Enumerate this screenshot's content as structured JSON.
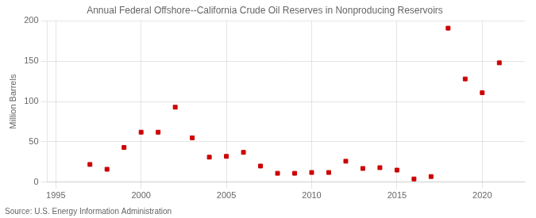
{
  "chart_data": {
    "type": "scatter",
    "title": "Annual Federal Offshore--California Crude Oil Reserves in Nonproducing Reservoirs",
    "ylabel": "Million Barrels",
    "annotations": [
      "Source: U.S. Energy Information Administration"
    ],
    "x": [
      1997,
      1998,
      1999,
      2000,
      2001,
      2002,
      2003,
      2004,
      2005,
      2006,
      2007,
      2008,
      2009,
      2010,
      2011,
      2012,
      2013,
      2014,
      2015,
      2016,
      2017,
      2018,
      2019,
      2020,
      2021
    ],
    "values": [
      22,
      16,
      43,
      62,
      62,
      93,
      55,
      31,
      32,
      37,
      20,
      11,
      11,
      12,
      12,
      26,
      17,
      18,
      15,
      4,
      7,
      191,
      128,
      111,
      148
    ],
    "color": "#cc0000",
    "marker": "square",
    "xlim": [
      1994.5,
      2022.5
    ],
    "xticks": [
      1995,
      2000,
      2005,
      2010,
      2015,
      2020
    ],
    "ylim": [
      0,
      200
    ],
    "yticks": [
      0,
      50,
      100,
      150,
      200
    ],
    "grid": true
  }
}
